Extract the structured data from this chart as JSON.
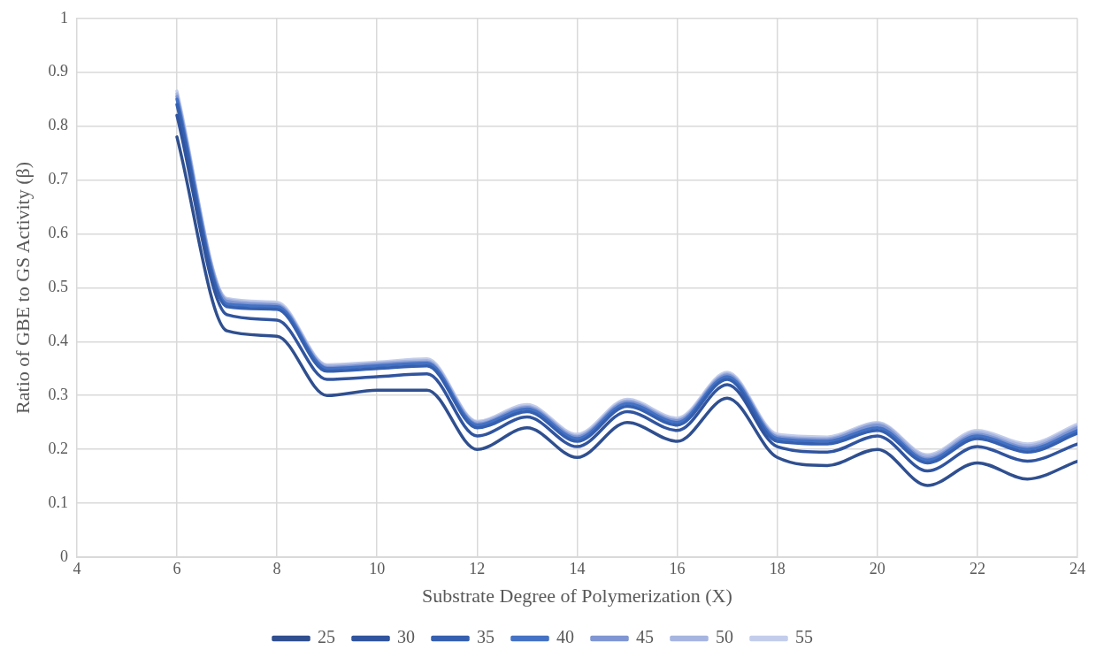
{
  "chart_data": {
    "type": "line",
    "xlabel": "Substrate Degree of Polymerization (X)",
    "ylabel": "Ratio of GBE to GS Activity (β)",
    "x": [
      6,
      7,
      8,
      9,
      10,
      11,
      12,
      13,
      14,
      15,
      16,
      17,
      18,
      19,
      20,
      21,
      22,
      23,
      24
    ],
    "series": [
      {
        "name": "25",
        "color": "#2f4f8f",
        "values": [
          0.78,
          0.42,
          0.41,
          0.3,
          0.31,
          0.31,
          0.2,
          0.24,
          0.185,
          0.25,
          0.215,
          0.295,
          0.185,
          0.17,
          0.2,
          0.133,
          0.175,
          0.145,
          0.178
        ]
      },
      {
        "name": "30",
        "color": "#30549e",
        "values": [
          0.82,
          0.45,
          0.44,
          0.33,
          0.335,
          0.34,
          0.225,
          0.26,
          0.205,
          0.27,
          0.235,
          0.32,
          0.205,
          0.195,
          0.225,
          0.16,
          0.205,
          0.178,
          0.21
        ]
      },
      {
        "name": "35",
        "color": "#3560b0",
        "values": [
          0.84,
          0.465,
          0.46,
          0.345,
          0.35,
          0.355,
          0.24,
          0.27,
          0.215,
          0.28,
          0.245,
          0.33,
          0.215,
          0.21,
          0.235,
          0.175,
          0.22,
          0.195,
          0.23
        ]
      },
      {
        "name": "40",
        "color": "#4472c4",
        "values": [
          0.85,
          0.47,
          0.465,
          0.35,
          0.355,
          0.36,
          0.245,
          0.275,
          0.22,
          0.285,
          0.25,
          0.335,
          0.22,
          0.215,
          0.24,
          0.18,
          0.225,
          0.2,
          0.235
        ]
      },
      {
        "name": "45",
        "color": "#7f96d2",
        "values": [
          0.855,
          0.475,
          0.468,
          0.352,
          0.358,
          0.362,
          0.247,
          0.278,
          0.223,
          0.288,
          0.253,
          0.338,
          0.223,
          0.218,
          0.245,
          0.183,
          0.228,
          0.203,
          0.24
        ]
      },
      {
        "name": "50",
        "color": "#a6b5e0",
        "values": [
          0.86,
          0.478,
          0.47,
          0.355,
          0.36,
          0.365,
          0.25,
          0.28,
          0.225,
          0.29,
          0.255,
          0.34,
          0.225,
          0.22,
          0.248,
          0.187,
          0.232,
          0.207,
          0.243
        ]
      },
      {
        "name": "55",
        "color": "#c3cdeb",
        "values": [
          0.865,
          0.48,
          0.473,
          0.357,
          0.362,
          0.368,
          0.252,
          0.283,
          0.228,
          0.293,
          0.258,
          0.343,
          0.228,
          0.223,
          0.25,
          0.19,
          0.235,
          0.21,
          0.247
        ]
      }
    ],
    "xlim": [
      4,
      24
    ],
    "xticks": [
      4,
      6,
      8,
      10,
      12,
      14,
      16,
      18,
      20,
      22,
      24
    ],
    "ylim": [
      0,
      1
    ],
    "yticks": [
      0,
      0.1,
      0.2,
      0.3,
      0.4,
      0.5,
      0.6,
      0.7,
      0.8,
      0.9,
      1
    ],
    "grid": true,
    "legend": "bottom",
    "marker": "none",
    "line_style": "solid"
  }
}
